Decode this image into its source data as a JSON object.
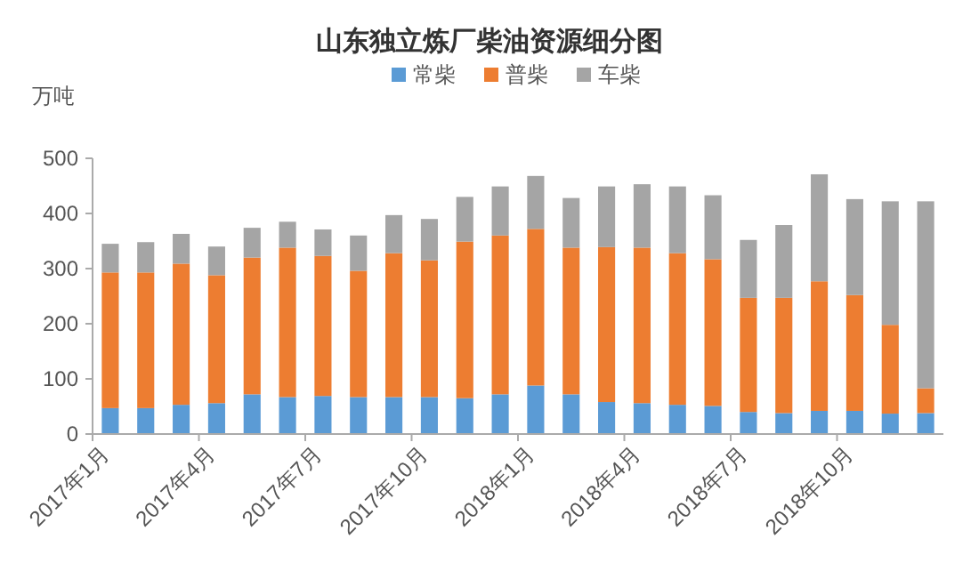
{
  "chart_data": {
    "type": "bar",
    "title": "山东独立炼厂柴油资源细分图",
    "ylabel": "万吨",
    "stacked": true,
    "legend": "top",
    "grid": false,
    "categories": [
      "2017年1月",
      null,
      null,
      "2017年4月",
      null,
      null,
      "2017年7月",
      null,
      null,
      "2017年10月",
      null,
      null,
      "2018年1月",
      null,
      null,
      "2018年4月",
      null,
      null,
      "2018年7月",
      null,
      null,
      "2018年10月",
      null,
      null
    ],
    "ylim": [
      0,
      500
    ],
    "yticks": [
      0,
      100,
      200,
      300,
      400,
      500
    ],
    "series": [
      {
        "name": "常柴",
        "color": "#5b9bd5",
        "values": [
          47,
          47,
          53,
          56,
          72,
          67,
          69,
          67,
          67,
          67,
          65,
          72,
          88,
          72,
          58,
          56,
          53,
          51,
          40,
          38,
          42,
          42,
          37,
          38
        ]
      },
      {
        "name": "普柴",
        "color": "#ed7d31",
        "values": [
          246,
          246,
          256,
          232,
          248,
          271,
          254,
          229,
          261,
          248,
          284,
          288,
          284,
          266,
          281,
          282,
          275,
          266,
          207,
          209,
          235,
          210,
          161,
          45
        ]
      },
      {
        "name": "车柴",
        "color": "#a5a5a5",
        "values": [
          52,
          55,
          54,
          52,
          54,
          47,
          48,
          64,
          69,
          75,
          81,
          89,
          96,
          90,
          110,
          115,
          121,
          116,
          105,
          132,
          194,
          174,
          224,
          339
        ]
      }
    ]
  }
}
